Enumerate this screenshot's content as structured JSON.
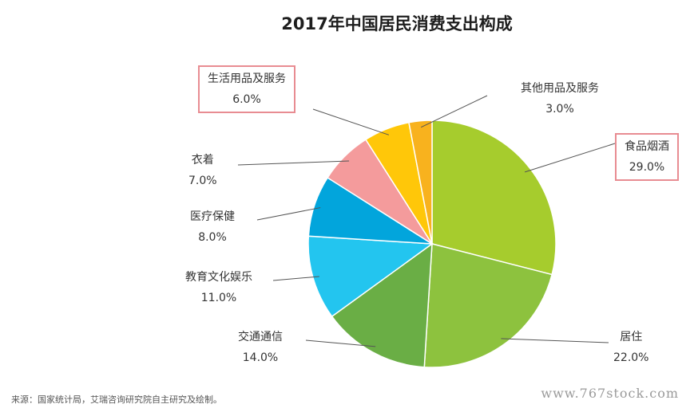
{
  "chart_data": {
    "type": "pie",
    "title": "2017年中国居民消费支出构成",
    "slices": [
      {
        "label": "食品烟酒",
        "value": 29.0,
        "value_label": "29.0%",
        "color": "#a6cc2d",
        "highlighted": true
      },
      {
        "label": "居住",
        "value": 22.0,
        "value_label": "22.0%",
        "color": "#8dc23e",
        "highlighted": false
      },
      {
        "label": "交通通信",
        "value": 14.0,
        "value_label": "14.0%",
        "color": "#6aae45",
        "highlighted": false
      },
      {
        "label": "教育文化娱乐",
        "value": 11.0,
        "value_label": "11.0%",
        "color": "#23c5ef",
        "highlighted": false
      },
      {
        "label": "医疗保健",
        "value": 8.0,
        "value_label": "8.0%",
        "color": "#02a5dc",
        "highlighted": false
      },
      {
        "label": "衣着",
        "value": 7.0,
        "value_label": "7.0%",
        "color": "#f49b9c",
        "highlighted": false
      },
      {
        "label": "生活用品及服务",
        "value": 6.0,
        "value_label": "6.0%",
        "color": "#ffc709",
        "highlighted": true
      },
      {
        "label": "其他用品及服务",
        "value": 3.0,
        "value_label": "3.0%",
        "color": "#f8b21e",
        "highlighted": false
      }
    ]
  },
  "source": "来源：国家统计局，艾瑞咨询研究院自主研究及绘制。",
  "watermark": "www.767stock.com"
}
